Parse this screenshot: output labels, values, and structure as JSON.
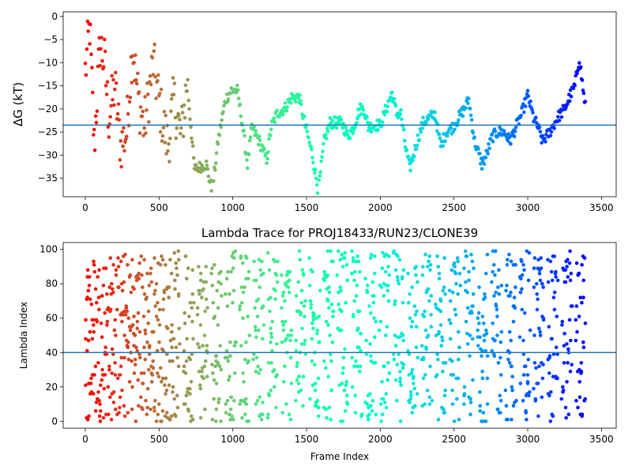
{
  "chart_data": [
    {
      "type": "scatter",
      "title": "",
      "xlabel": "",
      "ylabel": "ΔG (kT)",
      "xlim": [
        -150,
        3600
      ],
      "ylim": [
        -39,
        1
      ],
      "xticks": [
        0,
        500,
        1000,
        1500,
        2000,
        2500,
        3000,
        3500
      ],
      "yticks": [
        0,
        -5,
        -10,
        -15,
        -20,
        -25,
        -30,
        -35
      ],
      "hline": -23.5,
      "hline_color": "#1f77b4",
      "colormap": "rainbow (late frames violet, early frames red)",
      "grid": false,
      "x_max_frame": 3390,
      "trend_points": [
        [
          0,
          -12
        ],
        [
          30,
          -2
        ],
        [
          60,
          -28
        ],
        [
          100,
          -6
        ],
        [
          130,
          -10
        ],
        [
          160,
          -22
        ],
        [
          200,
          -15
        ],
        [
          240,
          -28
        ],
        [
          280,
          -25
        ],
        [
          320,
          -6
        ],
        [
          360,
          -18
        ],
        [
          400,
          -24
        ],
        [
          460,
          -10
        ],
        [
          520,
          -22
        ],
        [
          560,
          -28
        ],
        [
          600,
          -18
        ],
        [
          650,
          -26
        ],
        [
          690,
          -14
        ],
        [
          740,
          -33
        ],
        [
          820,
          -32
        ],
        [
          860,
          -38
        ],
        [
          900,
          -27
        ],
        [
          950,
          -18
        ],
        [
          990,
          -16
        ],
        [
          1030,
          -16
        ],
        [
          1060,
          -22
        ],
        [
          1100,
          -32
        ],
        [
          1130,
          -24
        ],
        [
          1180,
          -27
        ],
        [
          1230,
          -31
        ],
        [
          1260,
          -24
        ],
        [
          1300,
          -21
        ],
        [
          1350,
          -20
        ],
        [
          1400,
          -17.5
        ],
        [
          1450,
          -17.5
        ],
        [
          1480,
          -22
        ],
        [
          1540,
          -30
        ],
        [
          1580,
          -38
        ],
        [
          1620,
          -27
        ],
        [
          1660,
          -23
        ],
        [
          1700,
          -23
        ],
        [
          1740,
          -23
        ],
        [
          1780,
          -26
        ],
        [
          1820,
          -24
        ],
        [
          1860,
          -20
        ],
        [
          1890,
          -20
        ],
        [
          1920,
          -24
        ],
        [
          1960,
          -23.5
        ],
        [
          2000,
          -23.5
        ],
        [
          2040,
          -20
        ],
        [
          2080,
          -16.5
        ],
        [
          2110,
          -21
        ],
        [
          2140,
          -21
        ],
        [
          2170,
          -28
        ],
        [
          2200,
          -33
        ],
        [
          2250,
          -27
        ],
        [
          2290,
          -23
        ],
        [
          2330,
          -22
        ],
        [
          2370,
          -21
        ],
        [
          2410,
          -28
        ],
        [
          2450,
          -25
        ],
        [
          2490,
          -24
        ],
        [
          2530,
          -22
        ],
        [
          2570,
          -20
        ],
        [
          2600,
          -18
        ],
        [
          2640,
          -27
        ],
        [
          2690,
          -32
        ],
        [
          2720,
          -30
        ],
        [
          2760,
          -26
        ],
        [
          2800,
          -25
        ],
        [
          2840,
          -25
        ],
        [
          2880,
          -27
        ],
        [
          2920,
          -24
        ],
        [
          2960,
          -21
        ],
        [
          3000,
          -17
        ],
        [
          3040,
          -22
        ],
        [
          3070,
          -24
        ],
        [
          3100,
          -27
        ],
        [
          3150,
          -25
        ],
        [
          3200,
          -22
        ],
        [
          3250,
          -20
        ],
        [
          3290,
          -17
        ],
        [
          3320,
          -15
        ],
        [
          3350,
          -9
        ],
        [
          3380,
          -17
        ],
        [
          3390,
          -19
        ]
      ]
    },
    {
      "type": "scatter",
      "title": "Lambda Trace for PROJ18433/RUN23/CLONE39",
      "xlabel": "Frame Index",
      "ylabel": "Lambda Index",
      "xlim": [
        -150,
        3600
      ],
      "ylim": [
        -4,
        104
      ],
      "xticks": [
        0,
        500,
        1000,
        1500,
        2000,
        2500,
        3000,
        3500
      ],
      "yticks": [
        0,
        20,
        40,
        60,
        80,
        100
      ],
      "hline": 40,
      "hline_color": "#1f77b4",
      "colormap": "rainbow (late frames violet, early frames red)",
      "grid": false,
      "x_max_frame": 3390,
      "lambda_min": 0,
      "lambda_max": 99
    }
  ]
}
